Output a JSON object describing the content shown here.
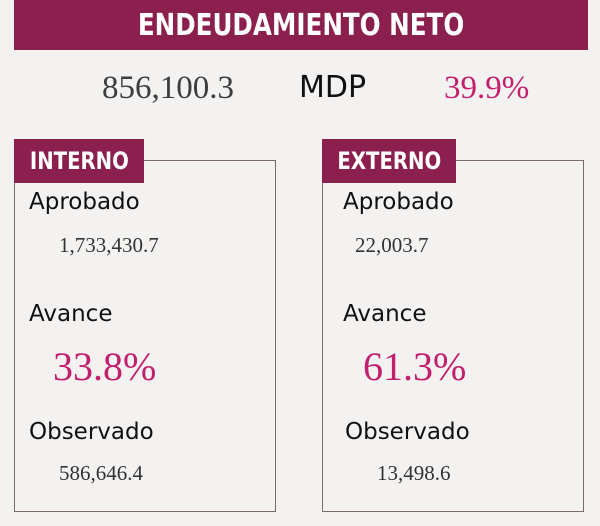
{
  "header": {
    "title": "ENDEUDAMIENTO NETO"
  },
  "summary": {
    "amount": "856,100.3",
    "unit": "MDP",
    "percent": "39.9%"
  },
  "panels": [
    {
      "title": "INTERNO",
      "approved_label": "Aprobado",
      "approved_value": "1,733,430.7",
      "progress_label": "Avance",
      "progress_value": "33.8%",
      "observed_label": "Observado",
      "observed_value": "586,646.4"
    },
    {
      "title": "EXTERNO",
      "approved_label": "Aprobado",
      "approved_value": "22,003.7",
      "progress_label": "Avance",
      "progress_value": "61.3%",
      "observed_label": "Observado",
      "observed_value": "13,498.6"
    }
  ],
  "colors": {
    "accent": "#8b1f4e",
    "highlight": "#c21f6e",
    "background": "#f3f2f1"
  }
}
